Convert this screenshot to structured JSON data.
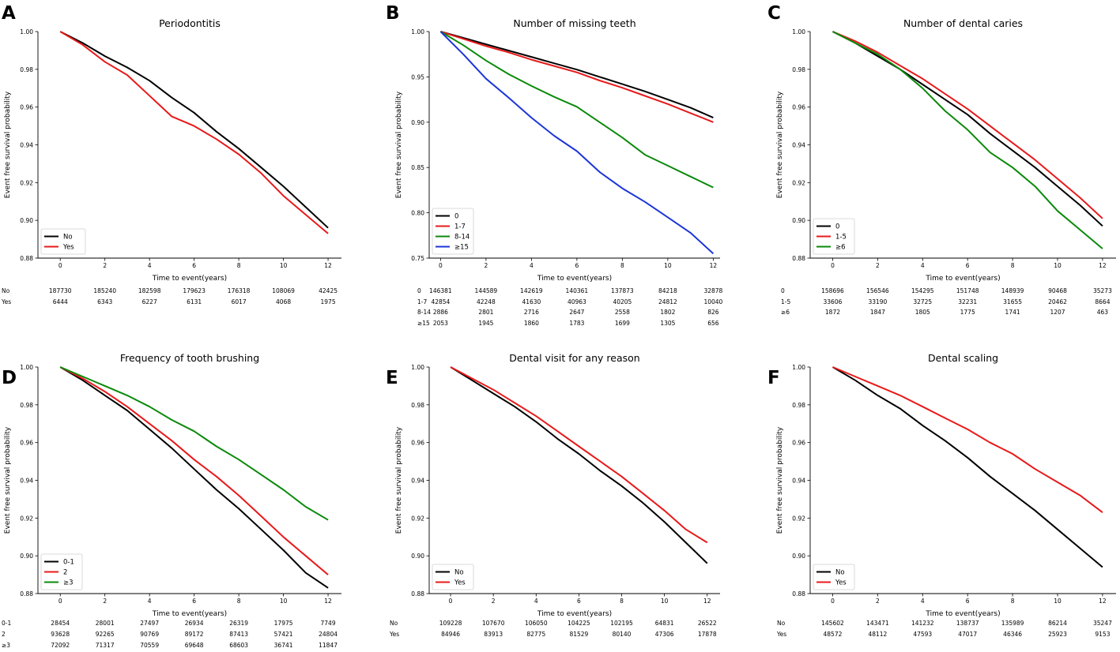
{
  "figure": {
    "x_axis_label": "Time to event(years)",
    "y_axis_label": "Event free survival probability"
  },
  "chart_data": [
    {
      "type": "line",
      "panel_letter": "A",
      "title": "Periodontitis",
      "xlabel": "Time to event(years)",
      "ylabel": "Event free survival probability",
      "xlim": [
        -1,
        12.6
      ],
      "ylim": [
        0.88,
        1.0
      ],
      "xticks": [
        0,
        2,
        4,
        6,
        8,
        10,
        12
      ],
      "yticks": [
        0.88,
        0.9,
        0.92,
        0.94,
        0.96,
        0.98,
        1.0
      ],
      "ytick_labels": [
        "0.88",
        "0.90",
        "0.92",
        "0.94",
        "0.96",
        "0.98",
        "1.00"
      ],
      "legend_position": "bottom-left",
      "x": [
        0,
        1,
        2,
        3,
        4,
        5,
        6,
        7,
        8,
        9,
        10,
        11,
        12
      ],
      "series": [
        {
          "name": "No",
          "color": "#000000",
          "values": [
            1.0,
            0.994,
            0.987,
            0.981,
            0.974,
            0.965,
            0.957,
            0.947,
            0.938,
            0.928,
            0.918,
            0.907,
            0.896
          ]
        },
        {
          "name": "Yes",
          "color": "#e8191a",
          "values": [
            1.0,
            0.993,
            0.984,
            0.977,
            0.966,
            0.955,
            0.95,
            0.943,
            0.935,
            0.925,
            0.913,
            0.903,
            0.893
          ]
        }
      ],
      "risk_table": {
        "times": [
          0,
          2,
          4,
          6,
          8,
          10,
          12
        ],
        "rows": [
          {
            "label": "No",
            "values": [
              "187730",
              "185240",
              "182598",
              "179623",
              "176318",
              "108069",
              "42425"
            ]
          },
          {
            "label": "Yes",
            "values": [
              "6444",
              "6343",
              "6227",
              "6131",
              "6017",
              "4068",
              "1975"
            ]
          }
        ]
      }
    },
    {
      "type": "line",
      "panel_letter": "B",
      "title": "Number of missing teeth",
      "xlabel": "Time to event(years)",
      "ylabel": "Event free survival probability",
      "xlim": [
        -0.5,
        12.3
      ],
      "ylim": [
        0.75,
        1.0
      ],
      "xticks": [
        0,
        2,
        4,
        6,
        8,
        10,
        12
      ],
      "yticks": [
        0.75,
        0.8,
        0.85,
        0.9,
        0.95,
        1.0
      ],
      "ytick_labels": [
        "0.75",
        "0.80",
        "0.85",
        "0.90",
        "0.95",
        "1.00"
      ],
      "legend_position": "bottom-left",
      "x": [
        0,
        1,
        2,
        3,
        4,
        5,
        6,
        7,
        8,
        9,
        10,
        11,
        12
      ],
      "series": [
        {
          "name": "0",
          "color": "#000000",
          "values": [
            1.0,
            0.993,
            0.986,
            0.979,
            0.972,
            0.965,
            0.958,
            0.95,
            0.942,
            0.934,
            0.925,
            0.916,
            0.905
          ]
        },
        {
          "name": "1-7",
          "color": "#e8191a",
          "values": [
            1.0,
            0.992,
            0.984,
            0.977,
            0.969,
            0.962,
            0.955,
            0.946,
            0.938,
            0.929,
            0.92,
            0.91,
            0.9
          ]
        },
        {
          "name": "8-14",
          "color": "#0a8a0a",
          "values": [
            1.0,
            0.985,
            0.968,
            0.953,
            0.94,
            0.928,
            0.917,
            0.9,
            0.883,
            0.864,
            0.852,
            0.84,
            0.828
          ]
        },
        {
          "name": "≥15",
          "color": "#1c35d8",
          "values": [
            1.0,
            0.975,
            0.948,
            0.927,
            0.905,
            0.885,
            0.868,
            0.845,
            0.827,
            0.812,
            0.795,
            0.778,
            0.755
          ]
        }
      ],
      "risk_table": {
        "times": [
          0,
          2,
          4,
          6,
          8,
          10,
          12
        ],
        "rows": [
          {
            "label": "0",
            "values": [
              "146381",
              "144589",
              "142619",
              "140361",
              "137873",
              "84218",
              "32878"
            ]
          },
          {
            "label": "1-7",
            "values": [
              "42854",
              "42248",
              "41630",
              "40963",
              "40205",
              "24812",
              "10040"
            ]
          },
          {
            "label": "8-14",
            "values": [
              "2886",
              "2801",
              "2716",
              "2647",
              "2558",
              "1802",
              "826"
            ]
          },
          {
            "label": "≥15",
            "values": [
              "2053",
              "1945",
              "1860",
              "1783",
              "1699",
              "1305",
              "656"
            ]
          }
        ]
      }
    },
    {
      "type": "line",
      "panel_letter": "C",
      "title": "Number of dental caries",
      "xlabel": "Time to event(years)",
      "ylabel": "Event free survival probability",
      "xlim": [
        -1,
        12.6
      ],
      "ylim": [
        0.88,
        1.0
      ],
      "xticks": [
        0,
        2,
        4,
        6,
        8,
        10,
        12
      ],
      "yticks": [
        0.88,
        0.9,
        0.92,
        0.94,
        0.96,
        0.98,
        1.0
      ],
      "ytick_labels": [
        "0.88",
        "0.90",
        "0.92",
        "0.94",
        "0.96",
        "0.98",
        "1.00"
      ],
      "legend_position": "bottom-left",
      "x": [
        0,
        1,
        2,
        3,
        4,
        5,
        6,
        7,
        8,
        9,
        10,
        11,
        12
      ],
      "series": [
        {
          "name": "0",
          "color": "#000000",
          "values": [
            1.0,
            0.994,
            0.987,
            0.98,
            0.972,
            0.964,
            0.956,
            0.946,
            0.937,
            0.928,
            0.918,
            0.908,
            0.897
          ]
        },
        {
          "name": "1-5",
          "color": "#e8191a",
          "values": [
            1.0,
            0.995,
            0.989,
            0.982,
            0.975,
            0.967,
            0.959,
            0.95,
            0.941,
            0.932,
            0.922,
            0.912,
            0.901
          ]
        },
        {
          "name": "≥6",
          "color": "#0a8a0a",
          "values": [
            1.0,
            0.994,
            0.988,
            0.98,
            0.97,
            0.958,
            0.948,
            0.936,
            0.928,
            0.918,
            0.905,
            0.895,
            0.885
          ]
        }
      ],
      "risk_table": {
        "times": [
          0,
          2,
          4,
          6,
          8,
          10,
          12
        ],
        "rows": [
          {
            "label": "0",
            "values": [
              "158696",
              "156546",
              "154295",
              "151748",
              "148939",
              "90468",
              "35273"
            ]
          },
          {
            "label": "1-5",
            "values": [
              "33606",
              "33190",
              "32725",
              "32231",
              "31655",
              "20462",
              "8664"
            ]
          },
          {
            "label": "≥6",
            "values": [
              "1872",
              "1847",
              "1805",
              "1775",
              "1741",
              "1207",
              "463"
            ]
          }
        ]
      }
    },
    {
      "type": "line",
      "panel_letter": "D",
      "title": "Frequency of tooth brushing",
      "xlabel": "Time to event(years)",
      "ylabel": "Event free survival probability",
      "xlim": [
        -1,
        12.6
      ],
      "ylim": [
        0.88,
        1.0
      ],
      "xticks": [
        0,
        2,
        4,
        6,
        8,
        10,
        12
      ],
      "yticks": [
        0.88,
        0.9,
        0.92,
        0.94,
        0.96,
        0.98,
        1.0
      ],
      "ytick_labels": [
        "0.88",
        "0.90",
        "0.92",
        "0.94",
        "0.96",
        "0.98",
        "1.00"
      ],
      "legend_position": "bottom-left",
      "x": [
        0,
        1,
        2,
        3,
        4,
        5,
        6,
        7,
        8,
        9,
        10,
        11,
        12
      ],
      "series": [
        {
          "name": "0-1",
          "color": "#000000",
          "values": [
            1.0,
            0.993,
            0.985,
            0.977,
            0.967,
            0.957,
            0.946,
            0.935,
            0.925,
            0.914,
            0.903,
            0.891,
            0.883
          ]
        },
        {
          "name": "2",
          "color": "#e8191a",
          "values": [
            1.0,
            0.994,
            0.987,
            0.979,
            0.97,
            0.961,
            0.951,
            0.942,
            0.932,
            0.921,
            0.91,
            0.9,
            0.89
          ]
        },
        {
          "name": "≥3",
          "color": "#0a8a0a",
          "values": [
            1.0,
            0.995,
            0.99,
            0.985,
            0.979,
            0.972,
            0.966,
            0.958,
            0.951,
            0.943,
            0.935,
            0.926,
            0.919
          ]
        }
      ],
      "risk_table": {
        "times": [
          0,
          2,
          4,
          6,
          8,
          10,
          12
        ],
        "rows": [
          {
            "label": "0-1",
            "values": [
              "28454",
              "28001",
              "27497",
              "26934",
              "26319",
              "17975",
              "7749"
            ]
          },
          {
            "label": "2",
            "values": [
              "93628",
              "92265",
              "90769",
              "89172",
              "87413",
              "57421",
              "24804"
            ]
          },
          {
            "label": "≥3",
            "values": [
              "72092",
              "71317",
              "70559",
              "69648",
              "68603",
              "36741",
              "11847"
            ]
          }
        ]
      }
    },
    {
      "type": "line",
      "panel_letter": "E",
      "title": "Dental visit for any reason",
      "xlabel": "Time to event(years)",
      "ylabel": "Event free survival probability",
      "xlim": [
        -1,
        12.6
      ],
      "ylim": [
        0.88,
        1.0
      ],
      "xticks": [
        0,
        2,
        4,
        6,
        8,
        10,
        12
      ],
      "yticks": [
        0.88,
        0.9,
        0.92,
        0.94,
        0.96,
        0.98,
        1.0
      ],
      "ytick_labels": [
        "0.88",
        "0.90",
        "0.92",
        "0.94",
        "0.96",
        "0.98",
        "1.00"
      ],
      "legend_position": "bottom-left",
      "x": [
        0,
        1,
        2,
        3,
        4,
        5,
        6,
        7,
        8,
        9,
        10,
        11,
        12
      ],
      "series": [
        {
          "name": "No",
          "color": "#000000",
          "values": [
            1.0,
            0.993,
            0.986,
            0.979,
            0.971,
            0.962,
            0.954,
            0.945,
            0.937,
            0.928,
            0.918,
            0.907,
            0.896
          ]
        },
        {
          "name": "Yes",
          "color": "#e8191a",
          "values": [
            1.0,
            0.994,
            0.988,
            0.981,
            0.974,
            0.966,
            0.958,
            0.95,
            0.942,
            0.933,
            0.924,
            0.914,
            0.907
          ]
        }
      ],
      "risk_table": {
        "times": [
          0,
          2,
          4,
          6,
          8,
          10,
          12
        ],
        "rows": [
          {
            "label": "No",
            "values": [
              "109228",
              "107670",
              "106050",
              "104225",
              "102195",
              "64831",
              "26522"
            ]
          },
          {
            "label": "Yes",
            "values": [
              "84946",
              "83913",
              "82775",
              "81529",
              "80140",
              "47306",
              "17878"
            ]
          }
        ]
      }
    },
    {
      "type": "line",
      "panel_letter": "F",
      "title": "Dental scaling",
      "xlabel": "Time to event(years)",
      "ylabel": "Event free survival probability",
      "xlim": [
        -1,
        12.6
      ],
      "ylim": [
        0.88,
        1.0
      ],
      "xticks": [
        0,
        2,
        4,
        6,
        8,
        10,
        12
      ],
      "yticks": [
        0.88,
        0.9,
        0.92,
        0.94,
        0.96,
        0.98,
        1.0
      ],
      "ytick_labels": [
        "0.88",
        "0.90",
        "0.92",
        "0.94",
        "0.96",
        "0.98",
        "1.00"
      ],
      "legend_position": "bottom-left",
      "x": [
        0,
        1,
        2,
        3,
        4,
        5,
        6,
        7,
        8,
        9,
        10,
        11,
        12
      ],
      "series": [
        {
          "name": "No",
          "color": "#000000",
          "values": [
            1.0,
            0.993,
            0.985,
            0.978,
            0.969,
            0.961,
            0.952,
            0.942,
            0.933,
            0.924,
            0.914,
            0.904,
            0.894
          ]
        },
        {
          "name": "Yes",
          "color": "#e8191a",
          "values": [
            1.0,
            0.995,
            0.99,
            0.985,
            0.979,
            0.973,
            0.967,
            0.96,
            0.954,
            0.946,
            0.939,
            0.932,
            0.923
          ]
        }
      ],
      "risk_table": {
        "times": [
          0,
          2,
          4,
          6,
          8,
          10,
          12
        ],
        "rows": [
          {
            "label": "No",
            "values": [
              "145602",
              "143471",
              "141232",
              "138737",
              "135989",
              "86214",
              "35247"
            ]
          },
          {
            "label": "Yes",
            "values": [
              "48572",
              "48112",
              "47593",
              "47017",
              "46346",
              "25923",
              "9153"
            ]
          }
        ]
      }
    }
  ]
}
